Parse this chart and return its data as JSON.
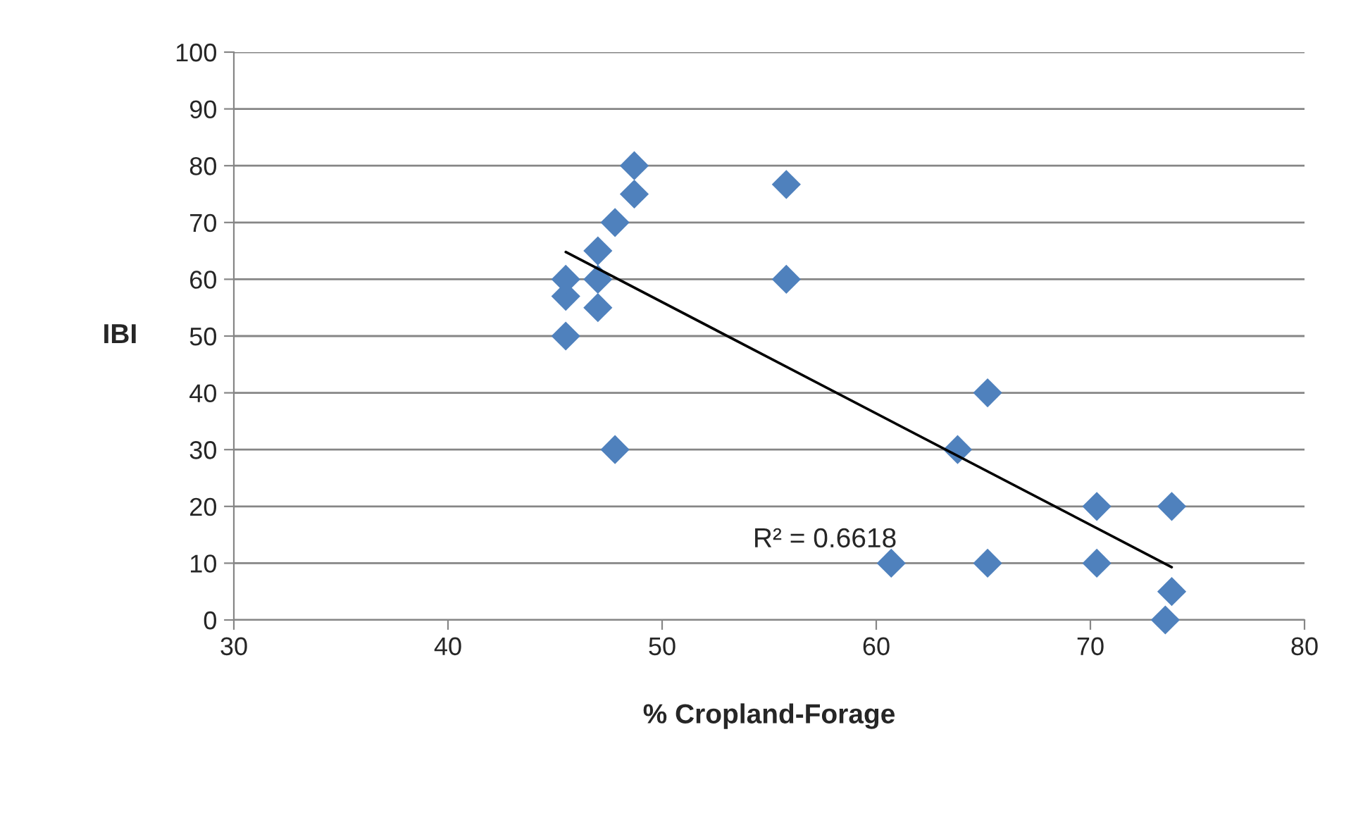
{
  "chart_data": {
    "type": "scatter",
    "xlabel": "% Cropland-Forage",
    "ylabel": "IBI",
    "xlim": [
      30,
      80
    ],
    "xticks": [
      30,
      40,
      50,
      60,
      70,
      80
    ],
    "ylim": [
      0,
      100
    ],
    "yticks": [
      0,
      10,
      20,
      30,
      40,
      50,
      60,
      70,
      80,
      90,
      100
    ],
    "grid": "y",
    "marker": "diamond",
    "legend": false,
    "series": [
      {
        "color": "#4f81bd",
        "x": [
          45.5,
          45.5,
          45.5,
          47.0,
          47.0,
          47.0,
          47.8,
          47.8,
          48.7,
          48.7,
          55.8,
          55.8,
          60.7,
          63.8,
          65.2,
          65.2,
          70.3,
          70.3,
          73.8,
          73.8,
          73.5
        ],
        "values": [
          50,
          57,
          60,
          55,
          60,
          65,
          70,
          30,
          75,
          80,
          76.7,
          60,
          10,
          30,
          40,
          10,
          20,
          10,
          20,
          5,
          0
        ]
      },
      {
        "type": "line",
        "color": "#000000",
        "marker": "none",
        "x": [
          45.5,
          73.8
        ],
        "values": [
          64.8,
          9.3
        ]
      }
    ],
    "annotations": [
      "R² = 0.6618"
    ]
  }
}
